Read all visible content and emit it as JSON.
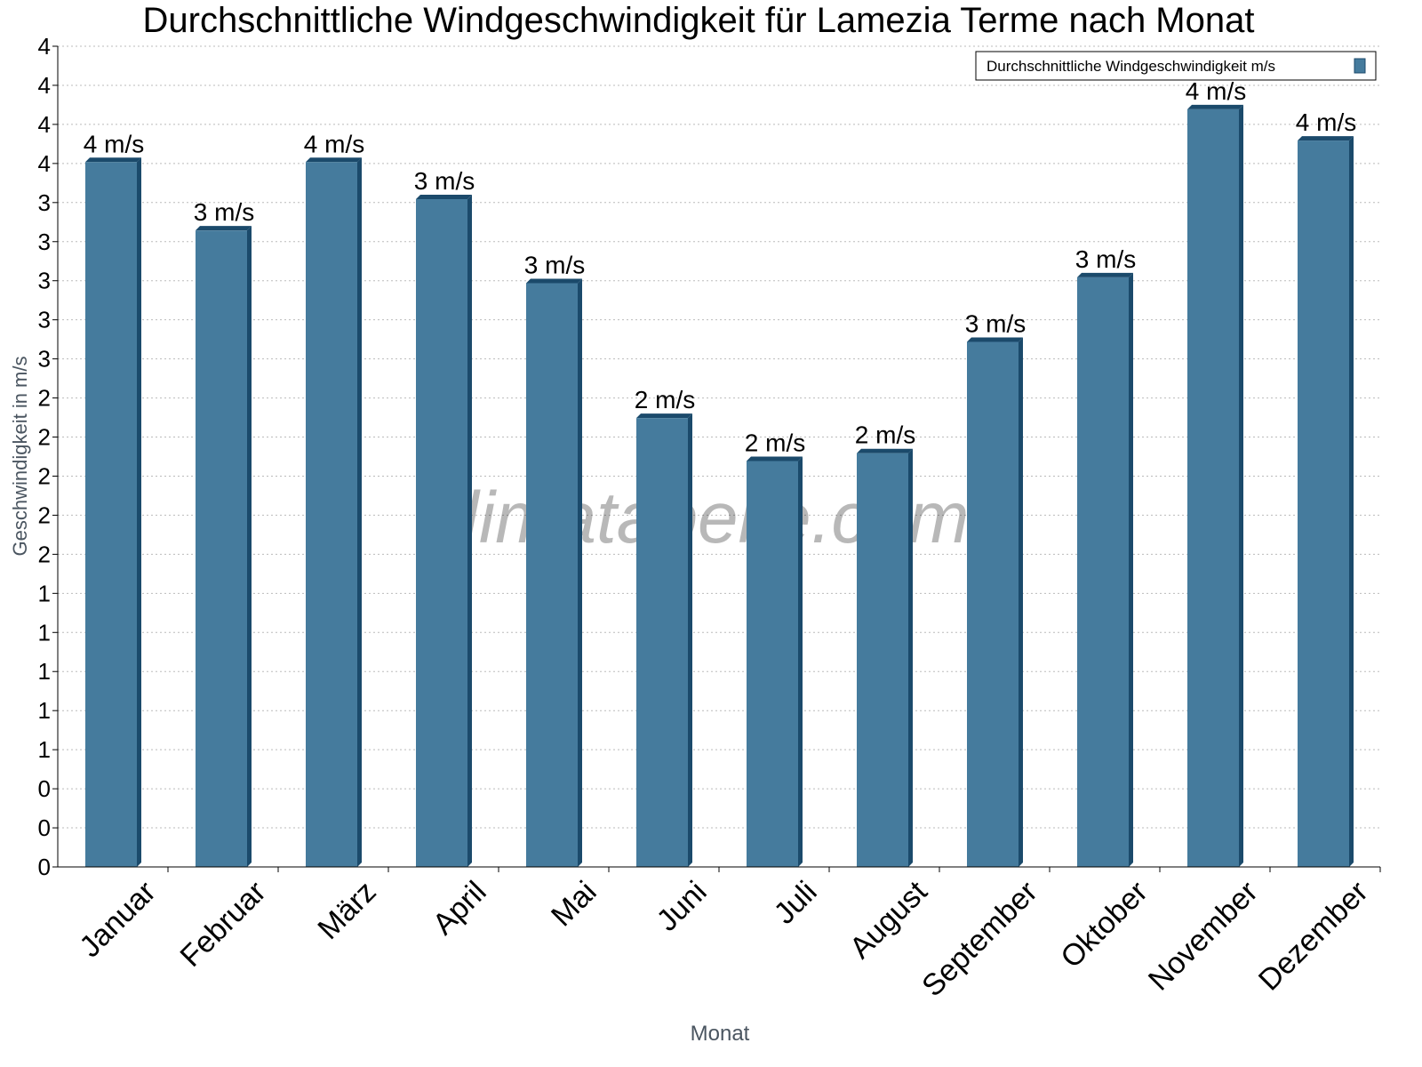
{
  "chart_data": {
    "type": "bar",
    "title": "Durchschnittliche Windgeschwindigkeit für Lamezia Terme nach Monat",
    "xlabel": "Monat",
    "ylabel": "Geschwindigkeit in m/s",
    "ylim": [
      0,
      4.2
    ],
    "ytick_step": 0.2,
    "grid": true,
    "legend_position": "top-right",
    "watermark": "klimatabelle.com",
    "categories": [
      "Januar",
      "Februar",
      "März",
      "April",
      "Mai",
      "Juni",
      "Juli",
      "August",
      "September",
      "Oktober",
      "November",
      "Dezember"
    ],
    "series": [
      {
        "name": "Durchschnittliche Windgeschwindigkeit m/s",
        "color": "#457b9d",
        "values": [
          3.63,
          3.28,
          3.63,
          3.44,
          3.01,
          2.32,
          2.1,
          2.14,
          2.71,
          3.04,
          3.9,
          3.74
        ],
        "data_labels": [
          "4 m/s",
          "3 m/s",
          "4 m/s",
          "3 m/s",
          "3 m/s",
          "2 m/s",
          "2 m/s",
          "2 m/s",
          "3 m/s",
          "3 m/s",
          "4 m/s",
          "4 m/s"
        ]
      }
    ]
  }
}
